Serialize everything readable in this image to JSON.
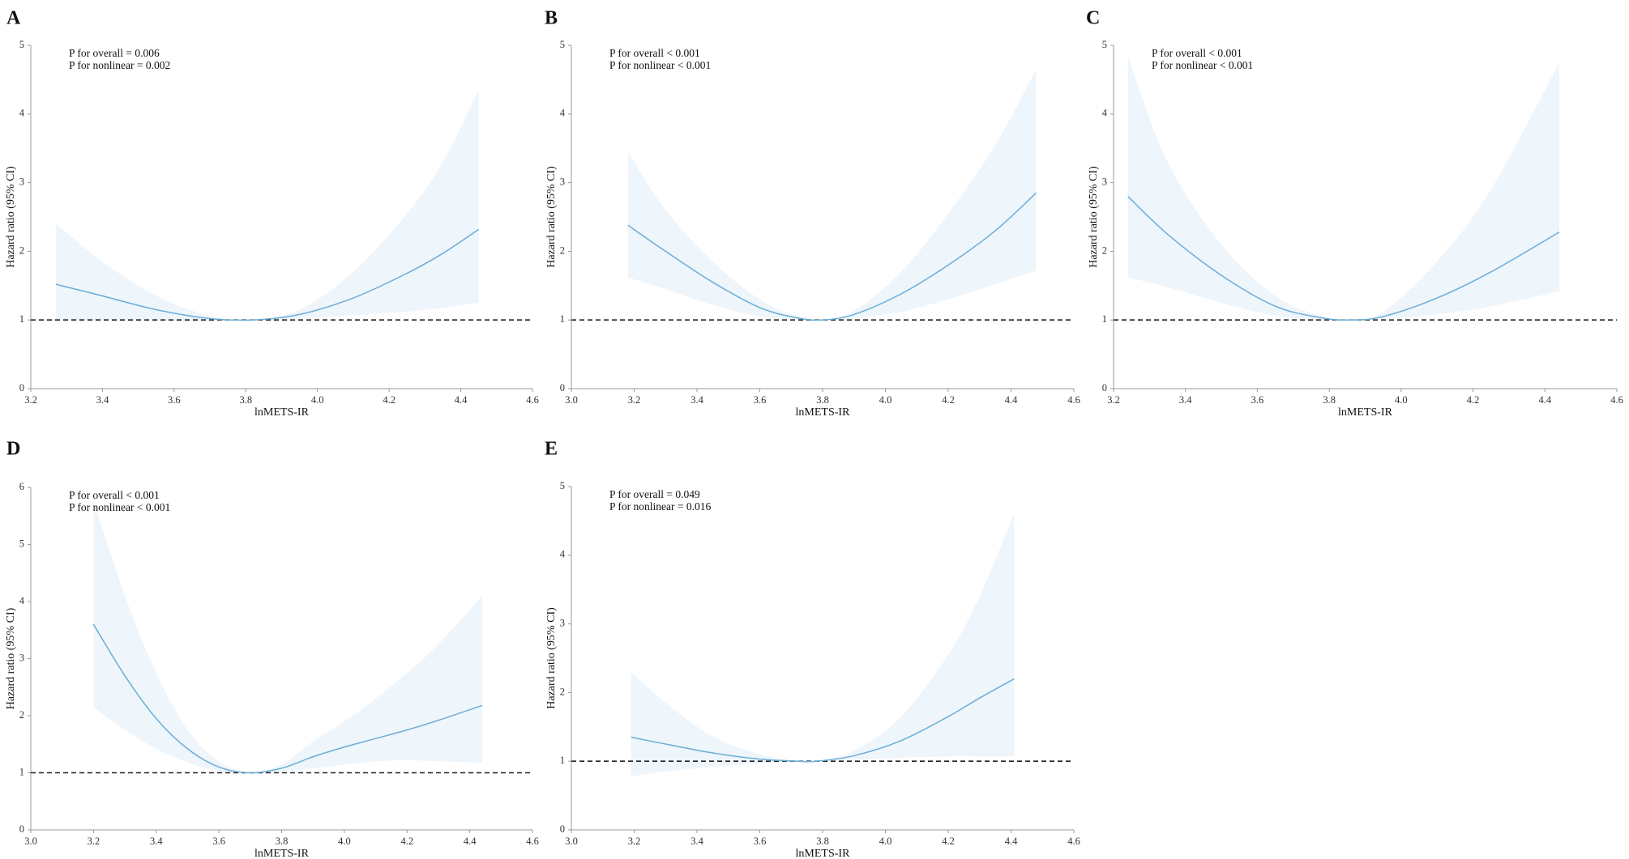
{
  "colors": {
    "curve": "#6aaed6",
    "band": "#eef5fb",
    "reference": "#222222"
  },
  "chart_data": [
    {
      "panel": "A",
      "type": "line",
      "xlabel": "lnMETS-IR",
      "ylabel": "Hazard ratio (95% CI)",
      "xlim": [
        3.2,
        4.6
      ],
      "xticks": [
        "3.2",
        "3.4",
        "3.6",
        "3.8",
        "4.0",
        "4.2",
        "4.4",
        "4.6"
      ],
      "ylim": [
        0,
        5
      ],
      "yticks": [
        "0",
        "1",
        "2",
        "3",
        "4",
        "5"
      ],
      "reference_y": 1,
      "annotations": [
        "P for overall = 0.006",
        "P for nonlinear = 0.002"
      ],
      "x": [
        3.27,
        3.4,
        3.55,
        3.7,
        3.82,
        3.95,
        4.1,
        4.25,
        4.35,
        4.45
      ],
      "y": [
        1.52,
        1.35,
        1.15,
        1.02,
        1.0,
        1.08,
        1.32,
        1.68,
        1.97,
        2.32
      ],
      "lower": [
        1.0,
        0.99,
        0.99,
        0.99,
        1.0,
        1.02,
        1.07,
        1.12,
        1.18,
        1.25
      ],
      "upper": [
        2.4,
        1.85,
        1.35,
        1.06,
        1.0,
        1.15,
        1.7,
        2.55,
        3.3,
        4.35
      ]
    },
    {
      "panel": "B",
      "type": "line",
      "xlabel": "lnMETS-IR",
      "ylabel": "Hazard ratio (95% CI)",
      "xlim": [
        3.0,
        4.6
      ],
      "xticks": [
        "3.0",
        "3.2",
        "3.4",
        "3.6",
        "3.8",
        "4.0",
        "4.2",
        "4.4",
        "4.6"
      ],
      "ylim": [
        0,
        5
      ],
      "yticks": [
        "0",
        "1",
        "2",
        "3",
        "4",
        "5"
      ],
      "reference_y": 1,
      "annotations": [
        "P for overall < 0.001",
        "P for nonlinear < 0.001"
      ],
      "x": [
        3.18,
        3.3,
        3.45,
        3.6,
        3.72,
        3.8,
        3.9,
        4.05,
        4.2,
        4.35,
        4.48
      ],
      "y": [
        2.38,
        2.0,
        1.55,
        1.18,
        1.03,
        1.0,
        1.08,
        1.38,
        1.8,
        2.3,
        2.85
      ],
      "lower": [
        1.62,
        1.45,
        1.22,
        1.05,
        1.0,
        1.0,
        1.02,
        1.12,
        1.3,
        1.52,
        1.72
      ],
      "upper": [
        3.45,
        2.6,
        1.85,
        1.3,
        1.05,
        1.0,
        1.13,
        1.7,
        2.55,
        3.55,
        4.65
      ]
    },
    {
      "panel": "C",
      "type": "line",
      "xlabel": "lnMETS-IR",
      "ylabel": "Hazard ratio (95% CI)",
      "xlim": [
        3.2,
        4.6
      ],
      "xticks": [
        "3.2",
        "3.4",
        "3.6",
        "3.8",
        "4.0",
        "4.2",
        "4.4",
        "4.6"
      ],
      "ylim": [
        0,
        5
      ],
      "yticks": [
        "0",
        "1",
        "2",
        "3",
        "4",
        "5"
      ],
      "reference_y": 1,
      "annotations": [
        "P for overall < 0.001",
        "P for nonlinear < 0.001"
      ],
      "x": [
        3.24,
        3.35,
        3.5,
        3.65,
        3.78,
        3.86,
        3.95,
        4.1,
        4.25,
        4.44
      ],
      "y": [
        2.8,
        2.25,
        1.65,
        1.2,
        1.03,
        1.0,
        1.05,
        1.32,
        1.7,
        2.28
      ],
      "lower": [
        1.62,
        1.48,
        1.25,
        1.06,
        1.0,
        1.0,
        1.01,
        1.08,
        1.2,
        1.42
      ],
      "upper": [
        4.85,
        3.3,
        2.1,
        1.35,
        1.05,
        1.0,
        1.12,
        1.85,
        2.9,
        4.75
      ]
    },
    {
      "panel": "D",
      "type": "line",
      "xlabel": "lnMETS-IR",
      "ylabel": "Hazard ratio (95% CI)",
      "xlim": [
        3.0,
        4.6
      ],
      "xticks": [
        "3.0",
        "3.2",
        "3.4",
        "3.6",
        "3.8",
        "4.0",
        "4.2",
        "4.4",
        "4.6"
      ],
      "ylim": [
        0,
        6
      ],
      "yticks": [
        "0",
        "1",
        "2",
        "3",
        "4",
        "5",
        "6"
      ],
      "reference_y": 1,
      "annotations": [
        "P for overall < 0.001",
        "P for nonlinear < 0.001"
      ],
      "x": [
        3.2,
        3.3,
        3.4,
        3.5,
        3.6,
        3.7,
        3.8,
        3.9,
        4.0,
        4.1,
        4.2,
        4.3,
        4.44
      ],
      "y": [
        3.6,
        2.7,
        1.95,
        1.42,
        1.1,
        1.0,
        1.08,
        1.28,
        1.45,
        1.6,
        1.75,
        1.92,
        2.18
      ],
      "lower": [
        2.15,
        1.75,
        1.42,
        1.18,
        1.03,
        1.0,
        1.02,
        1.08,
        1.14,
        1.2,
        1.22,
        1.2,
        1.18
      ],
      "upper": [
        5.75,
        4.1,
        2.75,
        1.75,
        1.2,
        1.0,
        1.15,
        1.55,
        1.9,
        2.3,
        2.75,
        3.25,
        4.1
      ]
    },
    {
      "panel": "E",
      "type": "line",
      "xlabel": "lnMETS-IR",
      "ylabel": "Hazard ratio (95% CI)",
      "xlim": [
        3.0,
        4.6
      ],
      "xticks": [
        "3.0",
        "3.2",
        "3.4",
        "3.6",
        "3.8",
        "4.0",
        "4.2",
        "4.4",
        "4.6"
      ],
      "ylim": [
        0,
        5
      ],
      "yticks": [
        "0",
        "1",
        "2",
        "3",
        "4",
        "5"
      ],
      "reference_y": 1,
      "annotations": [
        "P for overall = 0.049",
        "P for nonlinear = 0.016"
      ],
      "x": [
        3.19,
        3.3,
        3.45,
        3.6,
        3.72,
        3.78,
        3.9,
        4.05,
        4.2,
        4.3,
        4.41
      ],
      "y": [
        1.35,
        1.25,
        1.12,
        1.03,
        1.0,
        1.0,
        1.08,
        1.3,
        1.65,
        1.92,
        2.2
      ],
      "lower": [
        0.78,
        0.85,
        0.92,
        0.97,
        0.99,
        1.0,
        1.02,
        1.05,
        1.07,
        1.07,
        1.07
      ],
      "upper": [
        2.3,
        1.85,
        1.36,
        1.1,
        1.01,
        1.0,
        1.15,
        1.65,
        2.55,
        3.4,
        4.6
      ]
    }
  ]
}
